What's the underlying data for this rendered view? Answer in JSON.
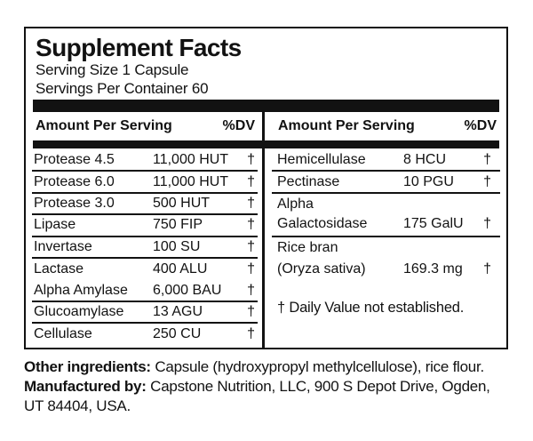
{
  "panel": {
    "title": "Supplement Facts",
    "serving_size": "Serving Size 1 Capsule",
    "servings_per_container": "Servings Per Container 60",
    "header_amount": "Amount Per Serving",
    "header_dv": "%DV",
    "left_rows": [
      {
        "name": "Protease 4.5",
        "amount": "11,000 HUT",
        "dv": "†"
      },
      {
        "name": "Protease 6.0",
        "amount": "11,000 HUT",
        "dv": "†"
      },
      {
        "name": "Protease 3.0",
        "amount": "500 HUT",
        "dv": "†"
      },
      {
        "name": "Lipase",
        "amount": "750 FIP",
        "dv": "†"
      },
      {
        "name": "Invertase",
        "amount": "100 SU",
        "dv": "†"
      },
      {
        "name": "Lactase",
        "amount": "400 ALU",
        "dv": "†"
      },
      {
        "name": "Alpha Amylase",
        "amount": "6,000 BAU",
        "dv": "†"
      },
      {
        "name": "Glucoamylase",
        "amount": "13 AGU",
        "dv": "†"
      },
      {
        "name": "Cellulase",
        "amount": "250 CU",
        "dv": "†"
      }
    ],
    "right_rows": [
      {
        "name": "Hemicellulase",
        "amount": "8 HCU",
        "dv": "†"
      },
      {
        "name": "Pectinase",
        "amount": "10 PGU",
        "dv": "†"
      },
      {
        "name_line1": "Alpha",
        "name_line2": "Galactosidase",
        "amount": "175 GalU",
        "dv": "†"
      },
      {
        "name_line1": "Rice bran",
        "name_line2": "(Oryza sativa)",
        "amount": "169.3 mg",
        "dv": "†"
      }
    ],
    "footnote": "† Daily Value not established."
  },
  "footer": {
    "other_ingredients_label": "Other ingredients:",
    "other_ingredients_text": " Capsule (hydroxypropyl methylcellulose), rice flour.",
    "manufactured_by_label": "Manufactured by:",
    "manufactured_by_line1": " Capstone Nutrition, LLC, 900 S Depot Drive, Ogden,",
    "manufactured_by_line2": "UT 84404, USA."
  },
  "colors": {
    "ink": "#121212",
    "background": "#ffffff"
  }
}
